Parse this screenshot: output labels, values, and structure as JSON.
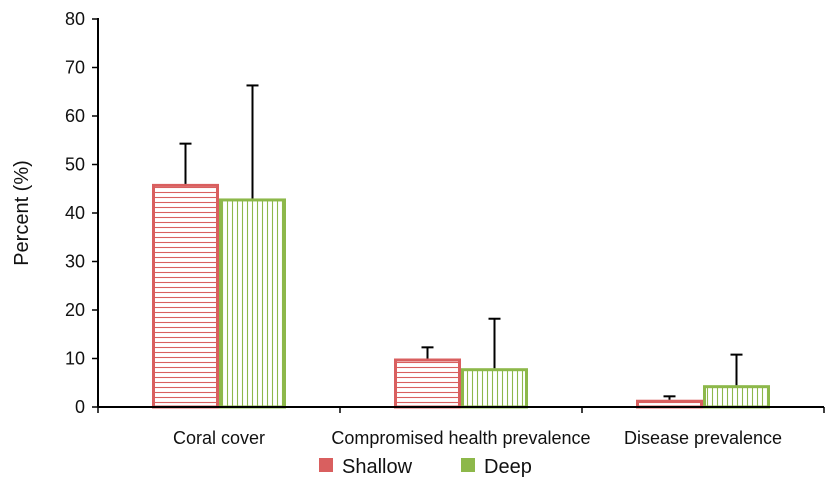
{
  "chart_data": {
    "type": "bar",
    "title": "",
    "xlabel": "",
    "ylabel": "Percent (%)",
    "ylim": [
      0,
      80
    ],
    "yticks": [
      0,
      10,
      20,
      30,
      40,
      50,
      60,
      70,
      80
    ],
    "categories": [
      "Coral cover",
      "Compromised health prevalence",
      "Disease prevalence"
    ],
    "series": [
      {
        "name": "Shallow",
        "values": [
          46,
          10,
          1.5
        ],
        "error_upper": [
          54.3,
          12.3,
          2.2
        ],
        "color": "#d95f5f",
        "pattern": "horizontal-lines"
      },
      {
        "name": "Deep",
        "values": [
          43,
          8,
          4.5
        ],
        "error_upper": [
          66.3,
          18.2,
          10.8
        ],
        "color": "#8db84a",
        "pattern": "vertical-lines"
      }
    ],
    "grid": false,
    "legend_position": "bottom-center",
    "error_bars": "upper-only"
  }
}
